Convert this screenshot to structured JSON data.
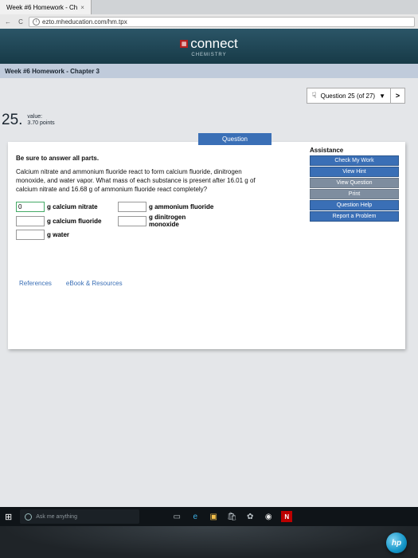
{
  "browser": {
    "tab_title": "Week #6 Homework - Ch",
    "tab_close": "×",
    "url": "ezto.mheducation.com/hm.tpx"
  },
  "brand": {
    "name": "connect",
    "sub": "CHEMISTRY"
  },
  "hw_title": "Week #6 Homework - Chapter 3",
  "question_selector": {
    "label": "Question 25 (of 27)",
    "caret": "▼",
    "next": ">"
  },
  "qnum": "25.",
  "qmeta": {
    "l1": "value:",
    "l2": "3.70 points"
  },
  "question": {
    "label": "Question",
    "lead": "Be sure to answer all parts.",
    "body": "Calcium nitrate and ammonium fluoride react to form calcium fluoride, dinitrogen monoxide, and water vapor. What mass of each substance is present after 16.01 g of calcium nitrate and 16.68 g of ammonium fluoride react completely?",
    "rows": [
      {
        "val": "0",
        "lbl": "g calcium nitrate"
      },
      {
        "val": "",
        "lbl": "g calcium fluoride"
      },
      {
        "val": "",
        "lbl": "g water"
      }
    ],
    "rows_b": [
      {
        "val": "",
        "lbl": "g ammonium fluoride"
      },
      {
        "val": "",
        "lbl": "g dinitrogen monoxide"
      }
    ]
  },
  "assist": {
    "title": "Assistance",
    "items": [
      "Check My Work",
      "View Hint",
      "View Question",
      "Print",
      "Question Help",
      "Report a Problem"
    ]
  },
  "refs": {
    "a": "References",
    "b": "eBook & Resources"
  },
  "taskbar": {
    "cortana": "Ask me anything"
  },
  "hp": "hp"
}
